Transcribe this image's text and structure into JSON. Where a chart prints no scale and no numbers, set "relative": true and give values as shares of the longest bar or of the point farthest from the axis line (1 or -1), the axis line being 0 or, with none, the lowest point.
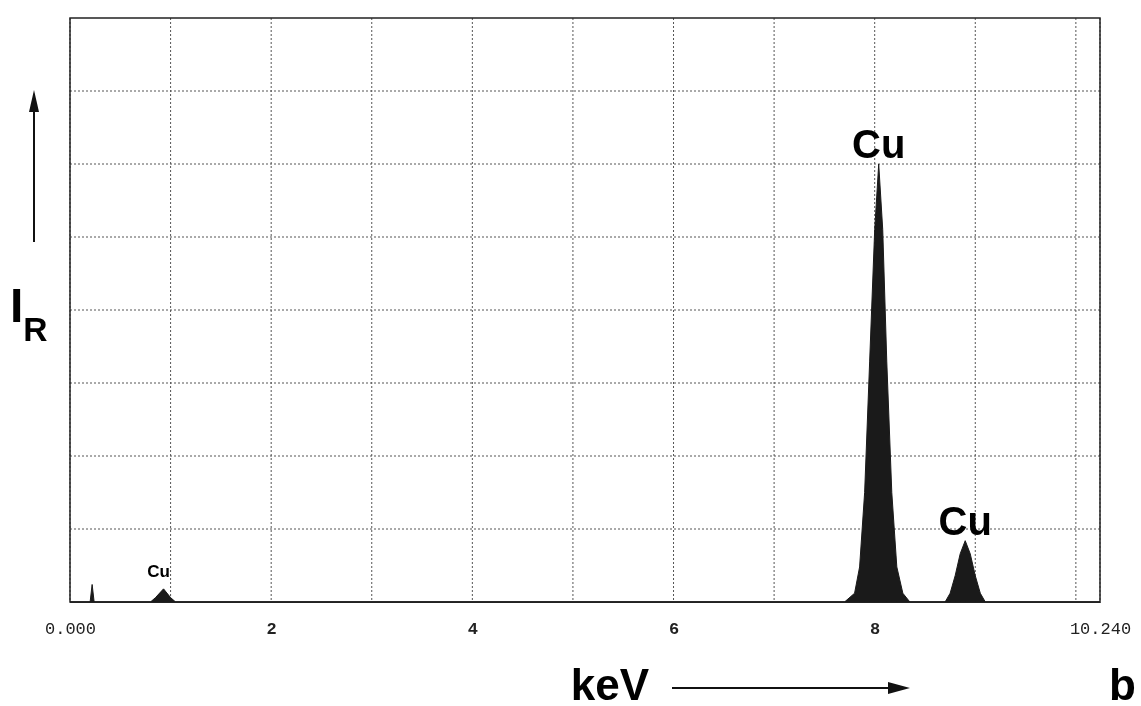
{
  "chart_data": {
    "type": "area",
    "relative": true,
    "xlabel": "keV",
    "ylabel": "I$_{R}$",
    "grid": true,
    "xlim": [
      0,
      10.24
    ],
    "xticks": [
      {
        "value": 0,
        "label": "0.000"
      },
      {
        "value": 1,
        "label": null
      },
      2,
      {
        "value": 3,
        "label": null
      },
      4,
      {
        "value": 5,
        "label": null
      },
      6,
      {
        "value": 7,
        "label": null
      },
      8,
      {
        "value": 9,
        "label": null
      },
      {
        "value": 10,
        "label": null
      },
      {
        "value": 10.24,
        "label": "10.240"
      }
    ],
    "series": [
      {
        "color": "#1a1a1a",
        "x": [
          0,
          0.2,
          0.22,
          0.24,
          0.8,
          0.85,
          0.93,
          1.0,
          1.05,
          7.7,
          7.8,
          7.85,
          7.9,
          7.95,
          8.0,
          8.04,
          8.08,
          8.12,
          8.17,
          8.22,
          8.28,
          8.35,
          8.7,
          8.75,
          8.8,
          8.85,
          8.9,
          8.95,
          9.0,
          9.05,
          9.1,
          10.24
        ],
        "values": [
          0,
          0,
          0.04,
          0,
          0,
          0.01,
          0.03,
          0.01,
          0,
          0,
          0.02,
          0.08,
          0.25,
          0.55,
          0.85,
          1,
          0.85,
          0.55,
          0.25,
          0.08,
          0.02,
          0,
          0,
          0.02,
          0.06,
          0.11,
          0.14,
          0.11,
          0.06,
          0.02,
          0,
          0
        ]
      }
    ],
    "annotations": [
      {
        "text": "Cu",
        "x": 8.04,
        "y": 1
      },
      {
        "text": "Cu",
        "x": 8.9,
        "y": 0.14
      },
      {
        "text": "Cu",
        "x": 0.93,
        "y": 0.03
      },
      "b"
    ]
  }
}
